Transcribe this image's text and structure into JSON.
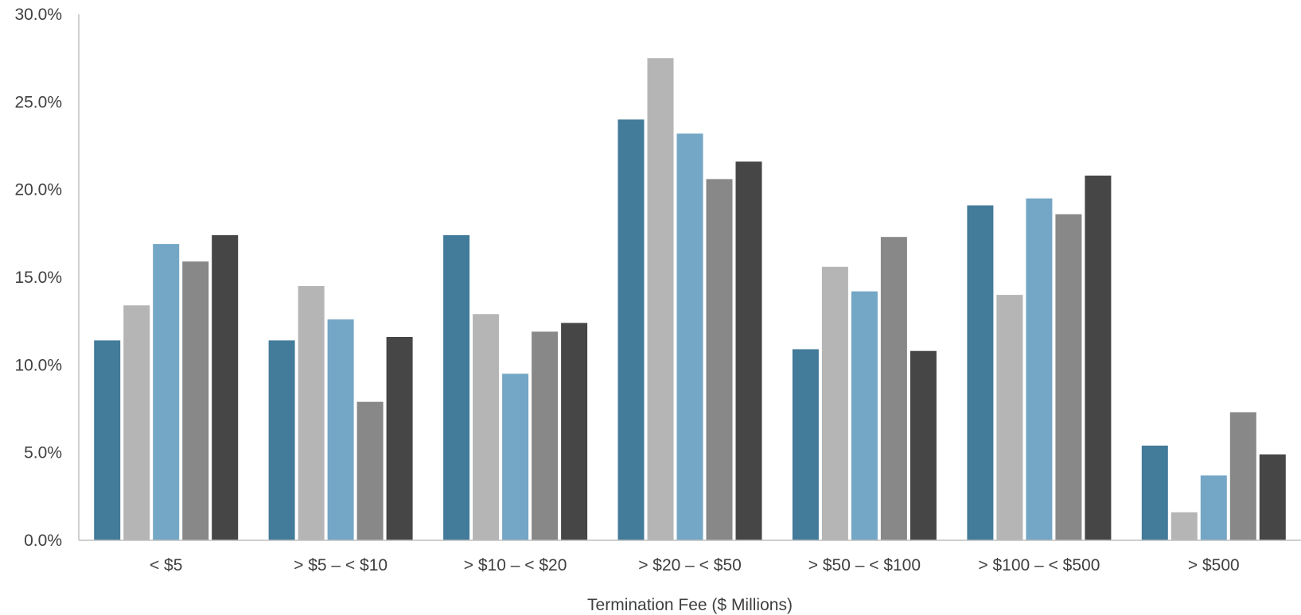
{
  "chart_data": {
    "type": "bar",
    "title": "",
    "xlabel": "Termination Fee ($ Millions)",
    "ylabel": "",
    "ylim": [
      0,
      30
    ],
    "y_ticks": [
      0,
      5,
      10,
      15,
      20,
      25,
      30
    ],
    "y_tick_labels": [
      "0.0%",
      "5.0%",
      "10.0%",
      "15.0%",
      "20.0%",
      "25.0%",
      "30.0%"
    ],
    "grid": false,
    "legend": "none",
    "categories": [
      "< $5",
      "> $5 – < $10",
      "> $10 – < $20",
      "> $20 – < $50",
      "> $50 – < $100",
      "> $100 – < $500",
      "> $500"
    ],
    "series": [
      {
        "color": "#437B9A",
        "values": [
          11.4,
          11.4,
          17.4,
          24.0,
          10.9,
          19.1,
          5.4
        ]
      },
      {
        "color": "#B5B5B5",
        "values": [
          13.4,
          14.5,
          12.9,
          27.5,
          15.6,
          14.0,
          1.6
        ]
      },
      {
        "color": "#74A6C5",
        "values": [
          16.9,
          12.6,
          9.5,
          23.2,
          14.2,
          19.5,
          3.7
        ]
      },
      {
        "color": "#888888",
        "values": [
          15.9,
          7.9,
          11.9,
          20.6,
          17.3,
          18.6,
          7.3
        ]
      },
      {
        "color": "#464646",
        "values": [
          17.4,
          11.6,
          12.4,
          21.6,
          10.8,
          20.8,
          4.9
        ]
      }
    ],
    "axis_color": "#BFBFBF"
  }
}
